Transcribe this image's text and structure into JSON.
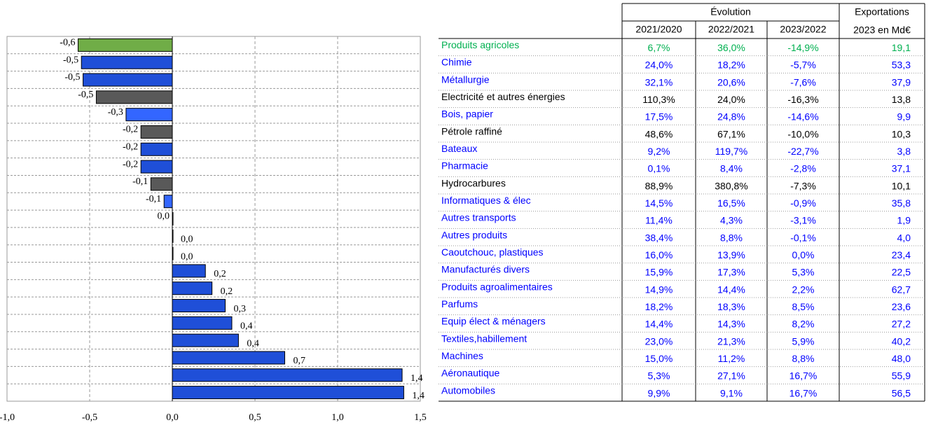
{
  "chart_data": {
    "type": "bar",
    "orientation": "horizontal",
    "values": [
      -0.57,
      -0.55,
      -0.54,
      -0.46,
      -0.28,
      -0.19,
      -0.19,
      -0.19,
      -0.13,
      -0.05,
      0.0,
      0.0,
      0.0,
      0.2,
      0.24,
      0.32,
      0.36,
      0.4,
      0.68,
      1.39,
      1.4
    ],
    "value_labels": [
      "-0,6",
      "-0,5",
      "-0,5",
      "-0,5",
      "-0,3",
      "-0,2",
      "-0,2",
      "-0,2",
      "-0,1",
      "-0,1",
      "0,0",
      "0,0",
      "0,0",
      "0,2",
      "0,2",
      "0,3",
      "0,4",
      "0,4",
      "0,7",
      "1,4",
      "1,4"
    ],
    "colors": [
      "#70ad47",
      "#1f4fd8",
      "#1f4fd8",
      "#595959",
      "#3366ff",
      "#595959",
      "#1f4fd8",
      "#1f4fd8",
      "#595959",
      "#3366ff",
      "#1f4fd8",
      "#1f4fd8",
      "#1f4fd8",
      "#1f4fd8",
      "#1f4fd8",
      "#1f4fd8",
      "#1f4fd8",
      "#1f4fd8",
      "#1f4fd8",
      "#1f4fd8",
      "#1f4fd8"
    ],
    "xlim": [
      -1,
      1.5
    ],
    "xticks": [
      {
        "value": -1,
        "label": "-1,0"
      },
      {
        "value": -0.5,
        "label": "-0,5"
      },
      {
        "value": 0,
        "label": "0,0"
      },
      {
        "value": 0.5,
        "label": "0,5"
      },
      {
        "value": 1,
        "label": "1,0"
      },
      {
        "value": 1.5,
        "label": "1,5"
      }
    ],
    "grid": true
  },
  "table": {
    "group_header": "Évolution",
    "columns": [
      "2021/2020",
      "2022/2021",
      "2023/2022"
    ],
    "export_header": [
      "Exportations",
      "2023 en Md€"
    ],
    "rows": [
      {
        "label": "Produits agricoles",
        "cells": [
          "6,7%",
          "36,0%",
          "-14,9%",
          "19,1"
        ],
        "color": "#00b050"
      },
      {
        "label": "Chimie",
        "cells": [
          "24,0%",
          "18,2%",
          "-5,7%",
          "53,3"
        ],
        "color": "#0000ff"
      },
      {
        "label": "Métallurgie",
        "cells": [
          "32,1%",
          "20,6%",
          "-7,6%",
          "37,9"
        ],
        "color": "#0000ff"
      },
      {
        "label": "Electricité et autres énergies",
        "cells": [
          "110,3%",
          "24,0%",
          "-16,3%",
          "13,8"
        ],
        "color": "#000000"
      },
      {
        "label": "Bois, papier",
        "cells": [
          "17,5%",
          "24,8%",
          "-14,6%",
          "9,9"
        ],
        "color": "#0000ff"
      },
      {
        "label": "Pétrole raffiné",
        "cells": [
          "48,6%",
          "67,1%",
          "-10,0%",
          "10,3"
        ],
        "color": "#000000"
      },
      {
        "label": "Bateaux",
        "cells": [
          "9,2%",
          "119,7%",
          "-22,7%",
          "3,8"
        ],
        "color": "#0000ff"
      },
      {
        "label": "Pharmacie",
        "cells": [
          "0,1%",
          "8,4%",
          "-2,8%",
          "37,1"
        ],
        "color": "#0000ff"
      },
      {
        "label": "Hydrocarbures",
        "cells": [
          "88,9%",
          "380,8%",
          "-7,3%",
          "10,1"
        ],
        "color": "#000000"
      },
      {
        "label": "Informatiques & élec",
        "cells": [
          "14,5%",
          "16,5%",
          "-0,9%",
          "35,8"
        ],
        "color": "#0000ff"
      },
      {
        "label": "Autres transports",
        "cells": [
          "11,4%",
          "4,3%",
          "-3,1%",
          "1,9"
        ],
        "color": "#0000ff"
      },
      {
        "label": "Autres produits",
        "cells": [
          "38,4%",
          "8,8%",
          "-0,1%",
          "4,0"
        ],
        "color": "#0000ff"
      },
      {
        "label": "Caoutchouc, plastiques",
        "cells": [
          "16,0%",
          "13,9%",
          "0,0%",
          "23,4"
        ],
        "color": "#0000ff"
      },
      {
        "label": "Manufacturés divers",
        "cells": [
          "15,9%",
          "17,3%",
          "5,3%",
          "22,5"
        ],
        "color": "#0000ff"
      },
      {
        "label": "Produits agroalimentaires",
        "cells": [
          "14,9%",
          "14,4%",
          "2,2%",
          "62,7"
        ],
        "color": "#0000ff"
      },
      {
        "label": "Parfums",
        "cells": [
          "18,2%",
          "18,3%",
          "8,5%",
          "23,6"
        ],
        "color": "#0000ff"
      },
      {
        "label": "Equip élect & ménagers",
        "cells": [
          "14,4%",
          "14,3%",
          "8,2%",
          "27,2"
        ],
        "color": "#0000ff"
      },
      {
        "label": "Textiles,habillement",
        "cells": [
          "23,0%",
          "21,3%",
          "5,9%",
          "40,2"
        ],
        "color": "#0000ff"
      },
      {
        "label": "Machines",
        "cells": [
          "15,0%",
          "11,2%",
          "8,8%",
          "48,0"
        ],
        "color": "#0000ff"
      },
      {
        "label": "Aéronautique",
        "cells": [
          "5,3%",
          "27,1%",
          "16,7%",
          "55,9"
        ],
        "color": "#0000ff"
      },
      {
        "label": "Automobiles",
        "cells": [
          "9,9%",
          "9,1%",
          "16,7%",
          "56,5"
        ],
        "color": "#0000ff"
      }
    ]
  }
}
